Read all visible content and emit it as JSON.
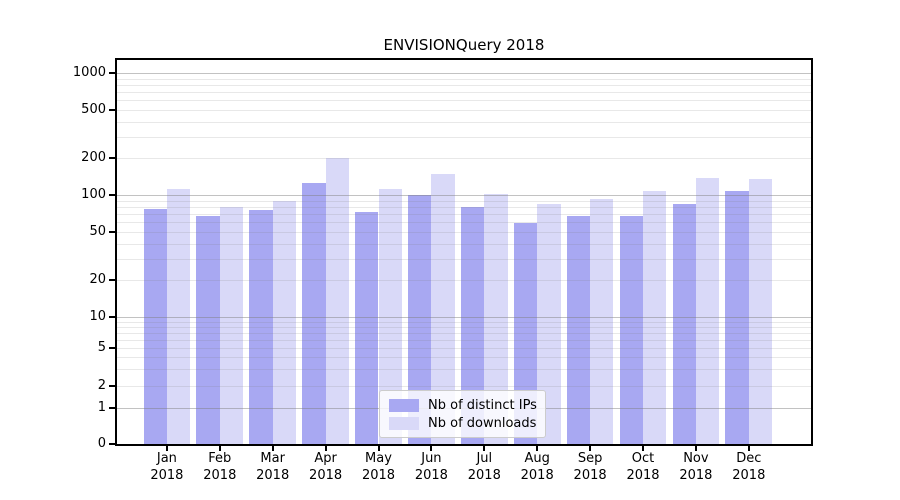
{
  "title": "ENVISIONQuery 2018",
  "chart_data": {
    "type": "bar",
    "title": "ENVISIONQuery 2018",
    "categories": [
      "Jan 2018",
      "Feb 2018",
      "Mar 2018",
      "Apr 2018",
      "May 2018",
      "Jun 2018",
      "Jul 2018",
      "Aug 2018",
      "Sep 2018",
      "Oct 2018",
      "Nov 2018",
      "Dec 2018"
    ],
    "series": [
      {
        "name": "Nb of distinct IPs",
        "color": "#a8a8f2",
        "values": [
          77,
          67,
          76,
          126,
          73,
          100,
          79,
          59,
          67,
          67,
          84,
          108
        ]
      },
      {
        "name": "Nb of downloads",
        "color": "#d9d9f8",
        "values": [
          111,
          80,
          90,
          200,
          111,
          149,
          102,
          85,
          92,
          108,
          139,
          135
        ]
      }
    ],
    "xlabel": "",
    "ylabel": "",
    "yscale": "symlog",
    "y_ticks": [
      0,
      1,
      2,
      5,
      10,
      20,
      50,
      100,
      200,
      500,
      1000
    ],
    "ylim": [
      0,
      1275
    ],
    "grid": true,
    "legend": {
      "entries": [
        "Nb of distinct IPs",
        "Nb of downloads"
      ],
      "position": "lower center"
    }
  },
  "colors": {
    "bar_distinct_ips": "#a8a8f2",
    "bar_downloads": "#d9d9f8",
    "grid_major": "#c2c2c2",
    "grid_minor": "#e8e8e8",
    "frame": "#000000",
    "background": "#ffffff"
  }
}
